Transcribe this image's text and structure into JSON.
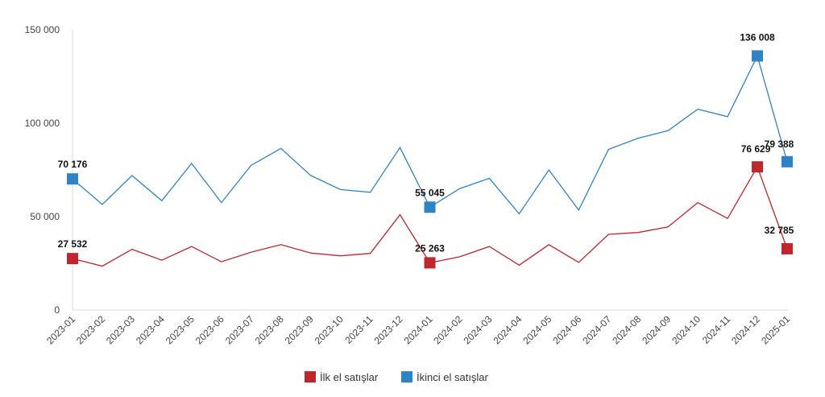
{
  "chart_data": {
    "type": "line",
    "categories": [
      "2023-01",
      "2023-02",
      "2023-03",
      "2023-04",
      "2023-05",
      "2023-06",
      "2023-07",
      "2023-08",
      "2023-09",
      "2023-10",
      "2023-11",
      "2023-12",
      "2024-01",
      "2024-02",
      "2024-03",
      "2024-04",
      "2024-05",
      "2024-06",
      "2024-07",
      "2024-08",
      "2024-09",
      "2024-10",
      "2024-11",
      "2024-12",
      "2025-01"
    ],
    "series": [
      {
        "name": "İlk el satışlar",
        "color": "#c0262d",
        "values": [
          27532,
          23500,
          32500,
          26700,
          34000,
          25800,
          31000,
          35000,
          30500,
          29000,
          30300,
          51000,
          25263,
          28500,
          34000,
          24000,
          35000,
          25500,
          40500,
          41500,
          44500,
          57500,
          49000,
          76629,
          32785
        ],
        "markers": [
          0,
          12,
          23,
          24
        ],
        "marker_labels": [
          "27 532",
          "25 263",
          "76 629",
          "32 785"
        ]
      },
      {
        "name": "İkinci el satışlar",
        "color": "#2e83c6",
        "values": [
          70176,
          56500,
          72000,
          58500,
          78500,
          57500,
          77500,
          86500,
          72000,
          64500,
          63000,
          87000,
          55045,
          65000,
          70500,
          51500,
          75000,
          53500,
          86000,
          92000,
          96000,
          107500,
          103500,
          136008,
          79388
        ],
        "markers": [
          0,
          12,
          23,
          24
        ],
        "marker_labels": [
          "70 176",
          "55 045",
          "136 008",
          "79 388"
        ]
      }
    ],
    "y_ticks": [
      0,
      50000,
      100000,
      150000
    ],
    "y_tick_labels": [
      "0",
      "50 000",
      "100 000",
      "150 000"
    ],
    "ylim": [
      0,
      150000
    ],
    "grid": false,
    "legend": "bottom",
    "title": "",
    "xlabel": "",
    "ylabel": ""
  }
}
